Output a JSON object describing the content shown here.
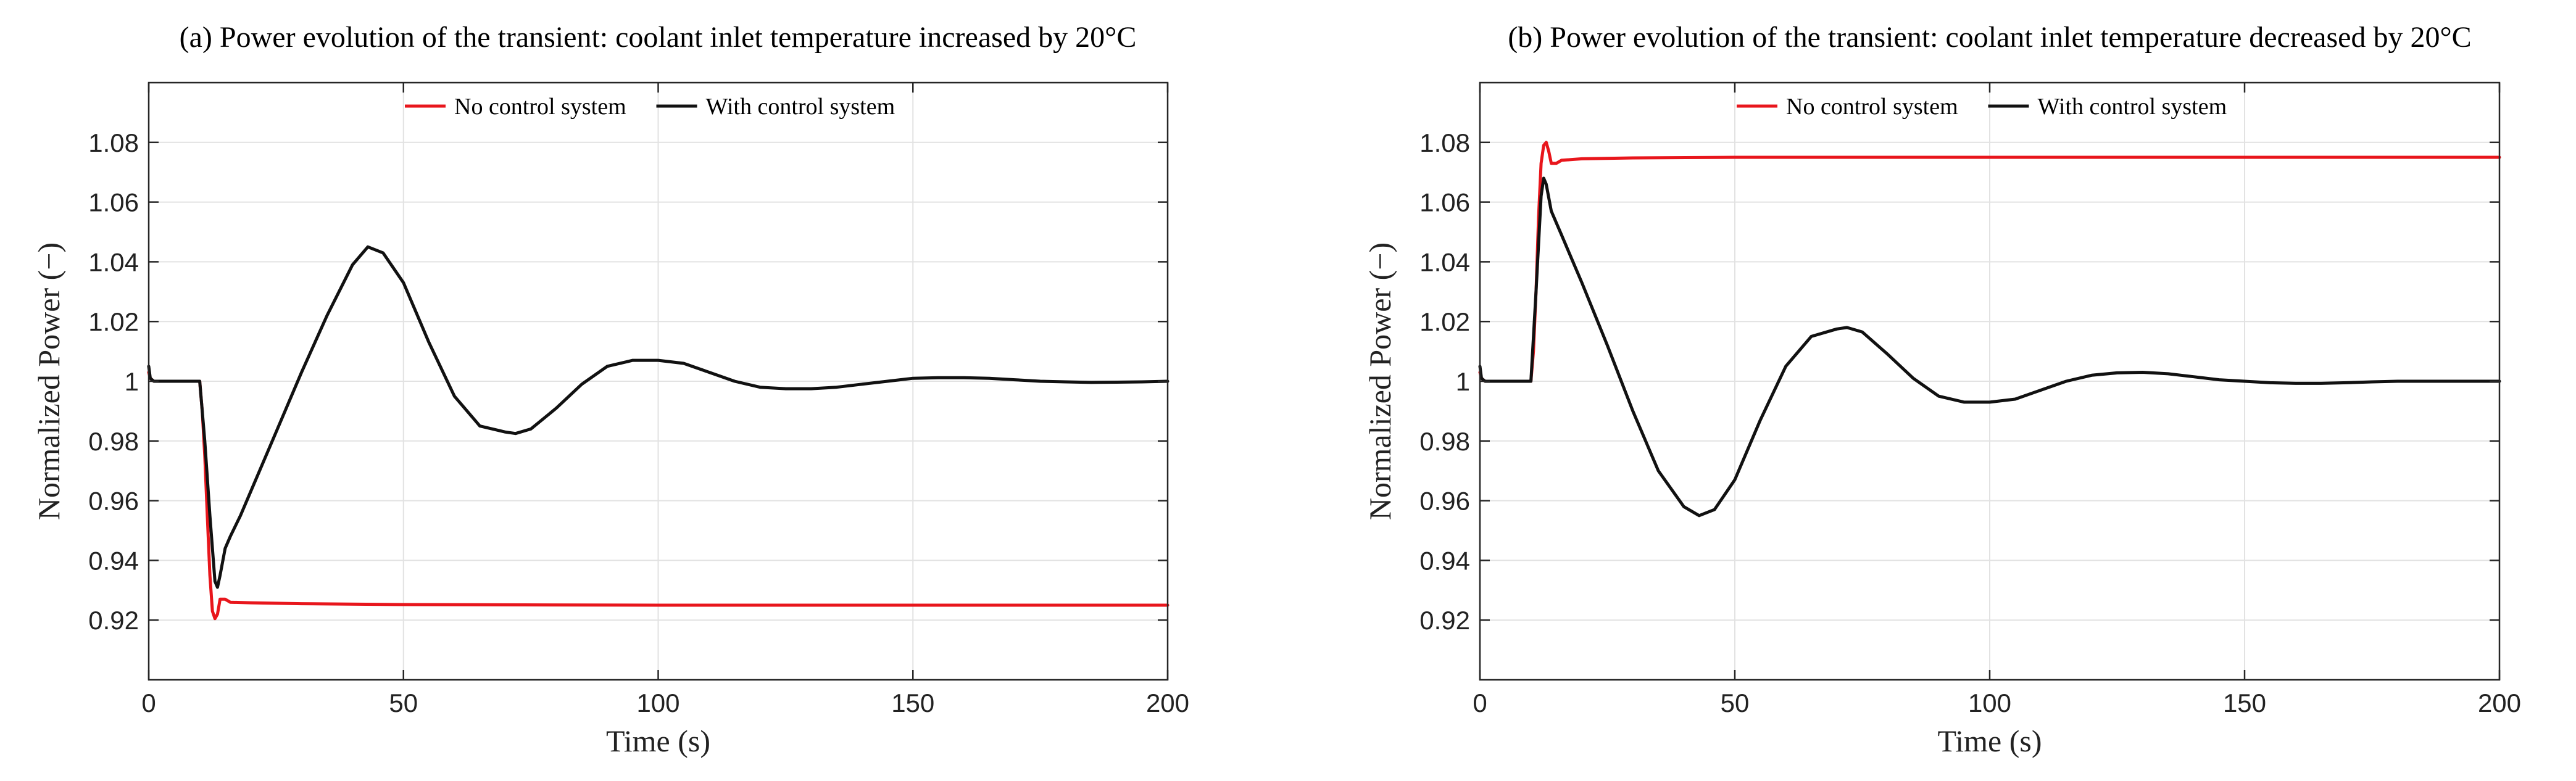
{
  "chart_data": [
    {
      "type": "line",
      "title": "(a) Power evolution of the transient: coolant inlet temperature increased by 20°C",
      "xlabel": "Time (s)",
      "ylabel": "Normalized Power (−)",
      "xlim": [
        0,
        200
      ],
      "ylim": [
        0.9,
        1.1
      ],
      "xticks": [
        0,
        50,
        100,
        150,
        200
      ],
      "yticks": [
        0.92,
        0.94,
        0.96,
        0.98,
        1.0,
        1.02,
        1.04,
        1.06,
        1.08
      ],
      "ytick_labels": [
        "0.92",
        "0.94",
        "0.96",
        "0.98",
        "1",
        "1.02",
        "1.04",
        "1.06",
        "1.08"
      ],
      "grid": true,
      "legend": {
        "location": "top-center",
        "orientation": "horizontal"
      },
      "series": [
        {
          "name": "No control system",
          "color": "#e8161c",
          "x": [
            0,
            0.3,
            1,
            10,
            10.5,
            11,
            11.5,
            12,
            12.5,
            13,
            13.5,
            14,
            15,
            16,
            20,
            30,
            50,
            100,
            150,
            200
          ],
          "y": [
            1.003,
            1.001,
            1.0,
            1.0,
            0.99,
            0.975,
            0.955,
            0.935,
            0.923,
            0.9205,
            0.922,
            0.927,
            0.927,
            0.926,
            0.9258,
            0.9255,
            0.9252,
            0.925,
            0.925,
            0.925
          ]
        },
        {
          "name": "With control system",
          "color": "#111111",
          "x": [
            0,
            0.3,
            1,
            10,
            11,
            12,
            13,
            13.5,
            14,
            15,
            16,
            18,
            20,
            25,
            30,
            35,
            40,
            43,
            46,
            50,
            55,
            60,
            65,
            70,
            72,
            75,
            80,
            85,
            90,
            95,
            100,
            105,
            110,
            115,
            120,
            125,
            130,
            135,
            140,
            145,
            150,
            155,
            160,
            165,
            170,
            175,
            180,
            185,
            190,
            195,
            200
          ],
          "y": [
            1.005,
            1.001,
            1.0,
            1.0,
            0.98,
            0.955,
            0.933,
            0.931,
            0.935,
            0.944,
            0.948,
            0.955,
            0.963,
            0.983,
            1.003,
            1.022,
            1.039,
            1.045,
            1.043,
            1.033,
            1.013,
            0.995,
            0.985,
            0.983,
            0.9825,
            0.984,
            0.991,
            0.999,
            1.005,
            1.007,
            1.007,
            1.006,
            1.003,
            1.0,
            0.998,
            0.9975,
            0.9975,
            0.998,
            0.999,
            1.0,
            1.001,
            1.0012,
            1.0012,
            1.001,
            1.0005,
            1.0,
            0.9998,
            0.9996,
            0.9997,
            0.9998,
            1.0
          ]
        }
      ]
    },
    {
      "type": "line",
      "title": "(b) Power evolution of the transient: coolant inlet temperature decreased by 20°C",
      "xlabel": "Time (s)",
      "ylabel": "Normalized Power (−)",
      "xlim": [
        0,
        200
      ],
      "ylim": [
        0.9,
        1.1
      ],
      "xticks": [
        0,
        50,
        100,
        150,
        200
      ],
      "yticks": [
        0.92,
        0.94,
        0.96,
        0.98,
        1.0,
        1.02,
        1.04,
        1.06,
        1.08
      ],
      "ytick_labels": [
        "0.92",
        "0.94",
        "0.96",
        "0.98",
        "1",
        "1.02",
        "1.04",
        "1.06",
        "1.08"
      ],
      "grid": true,
      "legend": {
        "location": "top-center",
        "orientation": "horizontal"
      },
      "series": [
        {
          "name": "No control system",
          "color": "#e8161c",
          "x": [
            0,
            0.3,
            1,
            10,
            10.5,
            11,
            11.5,
            12,
            12.5,
            13,
            13.5,
            14,
            15,
            16,
            20,
            30,
            50,
            100,
            150,
            200
          ],
          "y": [
            1.003,
            1.001,
            1.0,
            1.0,
            1.01,
            1.03,
            1.055,
            1.073,
            1.079,
            1.08,
            1.077,
            1.073,
            1.073,
            1.074,
            1.0745,
            1.0748,
            1.075,
            1.075,
            1.075,
            1.075
          ]
        },
        {
          "name": "With control system",
          "color": "#111111",
          "x": [
            0,
            0.3,
            1,
            10,
            11,
            12,
            12.5,
            13,
            14,
            15,
            16,
            18,
            20,
            25,
            30,
            35,
            40,
            43,
            46,
            50,
            55,
            60,
            65,
            70,
            72,
            75,
            80,
            85,
            90,
            95,
            100,
            105,
            110,
            115,
            120,
            125,
            130,
            135,
            140,
            145,
            150,
            155,
            160,
            165,
            170,
            175,
            180,
            185,
            190,
            195,
            200
          ],
          "y": [
            1.005,
            1.001,
            1.0,
            1.0,
            1.03,
            1.062,
            1.068,
            1.066,
            1.057,
            1.053,
            1.049,
            1.041,
            1.033,
            1.012,
            0.99,
            0.97,
            0.958,
            0.955,
            0.957,
            0.967,
            0.987,
            1.005,
            1.015,
            1.0175,
            1.018,
            1.0165,
            1.009,
            1.001,
            0.995,
            0.993,
            0.993,
            0.994,
            0.997,
            1.0,
            1.002,
            1.0028,
            1.003,
            1.0025,
            1.0015,
            1.0005,
            1.0,
            0.9995,
            0.9993,
            0.9993,
            0.9995,
            0.9998,
            1.0,
            1.0,
            1.0,
            1.0,
            1.0
          ]
        }
      ]
    }
  ]
}
